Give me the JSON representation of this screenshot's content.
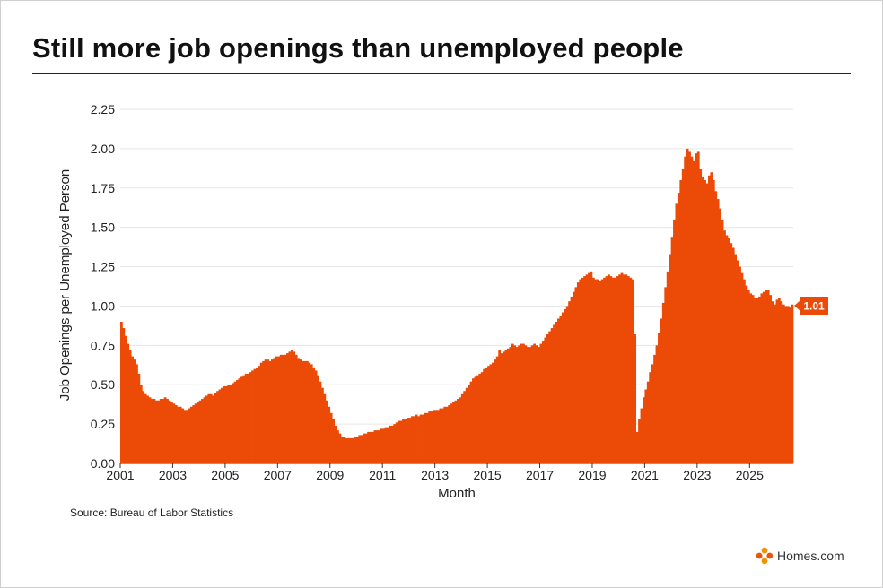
{
  "header": {
    "title": "Still more job openings than unemployed people"
  },
  "footer": {
    "source": "Source: Bureau of Labor Statistics",
    "brand": "Homes.com"
  },
  "colors": {
    "area": "#ec4a07",
    "gridline": "#e6e6e6",
    "badge": "#ec4a07"
  },
  "chart_data": {
    "type": "bar",
    "title": "Still more job openings than unemployed people",
    "xlabel": "Month",
    "ylabel": "Job Openings per Unemployed Person",
    "ylim": [
      0,
      2.25
    ],
    "yticks": [
      "0.00",
      "0.25",
      "0.50",
      "0.75",
      "1.00",
      "1.25",
      "1.50",
      "1.75",
      "2.00",
      "2.25"
    ],
    "xticks": [
      "2001",
      "2003",
      "2005",
      "2007",
      "2009",
      "2011",
      "2013",
      "2015",
      "2017",
      "2019",
      "2021",
      "2023",
      "2025"
    ],
    "x_start": "2001-01",
    "grid": true,
    "latest_label": "1.01",
    "series": [
      {
        "values": [
          0.9,
          0.86,
          0.81,
          0.76,
          0.72,
          0.68,
          0.66,
          0.63,
          0.57,
          0.5,
          0.46,
          0.44,
          0.43,
          0.42,
          0.41,
          0.41,
          0.4,
          0.4,
          0.41,
          0.41,
          0.42,
          0.41,
          0.4,
          0.39,
          0.38,
          0.37,
          0.36,
          0.36,
          0.35,
          0.34,
          0.34,
          0.35,
          0.36,
          0.37,
          0.38,
          0.39,
          0.4,
          0.41,
          0.42,
          0.43,
          0.44,
          0.44,
          0.43,
          0.45,
          0.46,
          0.47,
          0.48,
          0.49,
          0.49,
          0.5,
          0.5,
          0.51,
          0.52,
          0.53,
          0.54,
          0.55,
          0.56,
          0.57,
          0.57,
          0.58,
          0.59,
          0.6,
          0.61,
          0.62,
          0.64,
          0.65,
          0.66,
          0.66,
          0.65,
          0.66,
          0.67,
          0.68,
          0.68,
          0.69,
          0.69,
          0.69,
          0.7,
          0.71,
          0.72,
          0.71,
          0.69,
          0.67,
          0.66,
          0.65,
          0.65,
          0.65,
          0.64,
          0.63,
          0.61,
          0.59,
          0.56,
          0.52,
          0.48,
          0.44,
          0.4,
          0.36,
          0.32,
          0.28,
          0.24,
          0.21,
          0.19,
          0.17,
          0.17,
          0.16,
          0.16,
          0.16,
          0.16,
          0.17,
          0.17,
          0.18,
          0.18,
          0.19,
          0.19,
          0.2,
          0.2,
          0.2,
          0.21,
          0.21,
          0.21,
          0.22,
          0.22,
          0.23,
          0.23,
          0.24,
          0.24,
          0.25,
          0.26,
          0.27,
          0.27,
          0.28,
          0.28,
          0.29,
          0.29,
          0.3,
          0.3,
          0.31,
          0.3,
          0.31,
          0.31,
          0.32,
          0.32,
          0.33,
          0.33,
          0.34,
          0.34,
          0.34,
          0.35,
          0.35,
          0.36,
          0.36,
          0.37,
          0.38,
          0.39,
          0.4,
          0.41,
          0.42,
          0.44,
          0.46,
          0.48,
          0.5,
          0.52,
          0.54,
          0.55,
          0.56,
          0.57,
          0.58,
          0.6,
          0.61,
          0.62,
          0.63,
          0.64,
          0.66,
          0.68,
          0.72,
          0.7,
          0.71,
          0.72,
          0.73,
          0.74,
          0.76,
          0.75,
          0.74,
          0.75,
          0.76,
          0.76,
          0.75,
          0.74,
          0.74,
          0.75,
          0.76,
          0.75,
          0.74,
          0.76,
          0.78,
          0.8,
          0.82,
          0.84,
          0.86,
          0.88,
          0.9,
          0.92,
          0.94,
          0.96,
          0.98,
          1.0,
          1.03,
          1.06,
          1.09,
          1.12,
          1.15,
          1.17,
          1.18,
          1.19,
          1.2,
          1.21,
          1.22,
          1.18,
          1.17,
          1.17,
          1.16,
          1.17,
          1.18,
          1.19,
          1.2,
          1.19,
          1.18,
          1.18,
          1.19,
          1.2,
          1.21,
          1.2,
          1.2,
          1.19,
          1.18,
          1.17,
          0.82,
          0.2,
          0.28,
          0.35,
          0.42,
          0.47,
          0.52,
          0.58,
          0.63,
          0.69,
          0.75,
          0.83,
          0.92,
          1.02,
          1.12,
          1.22,
          1.33,
          1.44,
          1.55,
          1.65,
          1.72,
          1.8,
          1.87,
          1.95,
          2.0,
          1.98,
          1.95,
          1.92,
          1.97,
          1.98,
          1.87,
          1.82,
          1.8,
          1.78,
          1.83,
          1.85,
          1.8,
          1.73,
          1.68,
          1.62,
          1.55,
          1.48,
          1.45,
          1.43,
          1.4,
          1.37,
          1.33,
          1.29,
          1.25,
          1.21,
          1.17,
          1.13,
          1.1,
          1.08,
          1.07,
          1.05,
          1.05,
          1.06,
          1.08,
          1.09,
          1.1,
          1.1,
          1.07,
          1.03,
          1.01,
          1.04,
          1.05,
          1.03,
          1.01,
          1.0,
          1.0,
          0.99,
          1.01
        ]
      }
    ]
  }
}
